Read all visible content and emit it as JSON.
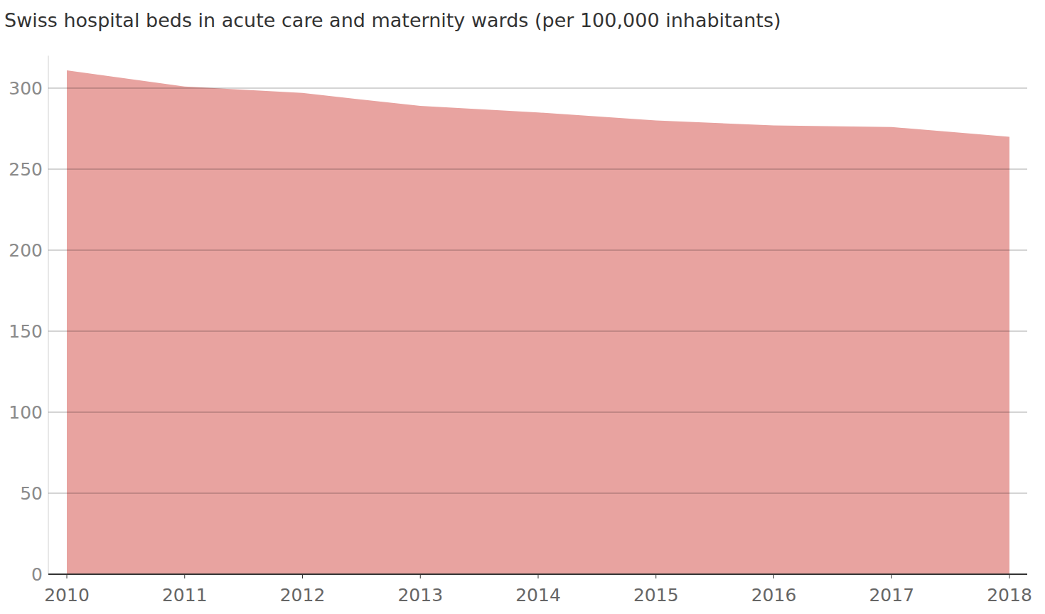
{
  "chart_data": {
    "type": "area",
    "title": "Swiss hospital beds in acute care and maternity wards (per 100,000 inhabitants)",
    "x": [
      2010,
      2011,
      2012,
      2013,
      2014,
      2015,
      2016,
      2017,
      2018
    ],
    "values": [
      311,
      301,
      297,
      289,
      285,
      280,
      277,
      276,
      270
    ],
    "color": "#e8a3a0",
    "xlim": [
      2010,
      2018
    ],
    "xticks": [
      2010,
      2011,
      2012,
      2013,
      2014,
      2015,
      2016,
      2017,
      2018
    ],
    "ylim": [
      0,
      320
    ],
    "yticks": [
      0,
      50,
      100,
      150,
      200,
      250,
      300
    ],
    "grid": true
  }
}
